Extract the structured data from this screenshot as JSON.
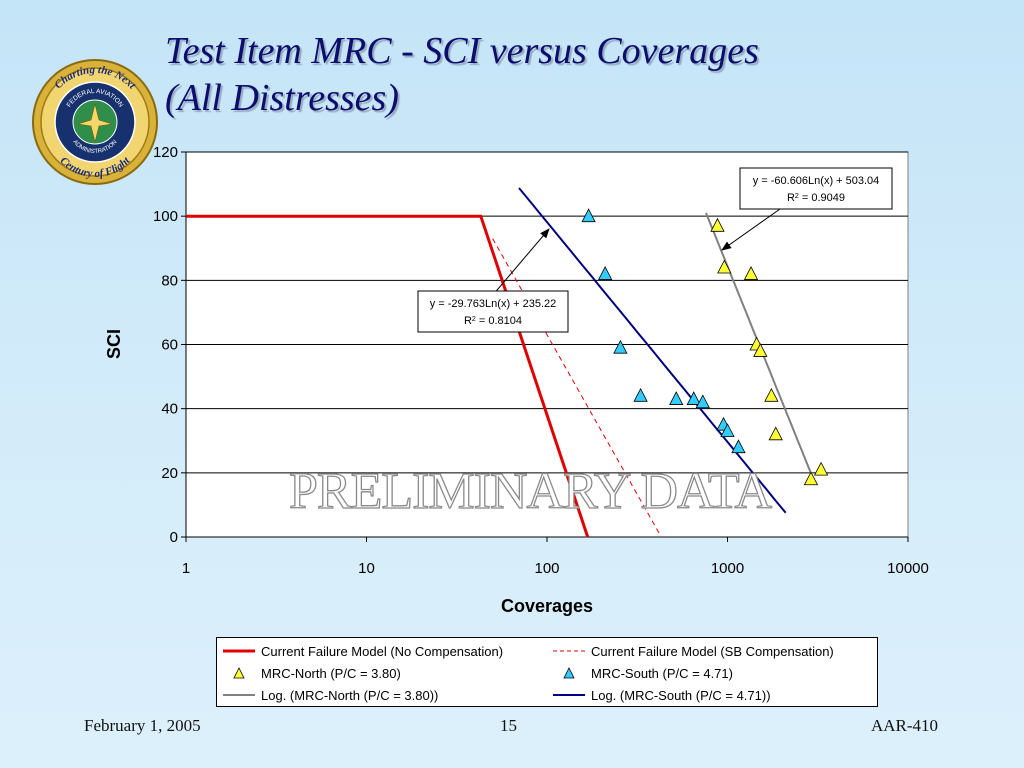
{
  "slide": {
    "title_line1": "Test Item MRC - SCI versus Coverages",
    "title_line2": "(All Distresses)",
    "logo": {
      "ring_text_top": "Charting the Next",
      "ring_text_bottom": "Century of Flight",
      "inner_text_top": "FEDERAL AVIATION",
      "inner_text_bottom": "ADMINISTRATION"
    },
    "footer_left": "February 1, 2005",
    "footer_center": "15",
    "footer_right": "AAR-410",
    "watermark": "PRELIMINARY DATA"
  },
  "colors": {
    "title": "#0d0d6e",
    "current_model": "#e00000",
    "sb_model": "#e00000",
    "north_fill": "#ffff33",
    "south_fill": "#33ccff",
    "north_fit": "#808080",
    "south_fit": "#00007f"
  },
  "chart_data": {
    "type": "scatter",
    "xlabel": "Coverages",
    "ylabel": "SCI",
    "xscale": "log",
    "xlim": [
      1,
      10000
    ],
    "ylim": [
      0,
      120
    ],
    "x_ticks": [
      "1",
      "10",
      "100",
      "1000",
      "10000"
    ],
    "y_ticks": [
      "0",
      "20",
      "40",
      "60",
      "80",
      "100",
      "120"
    ],
    "grid": "horizontal",
    "legend_position": "bottom",
    "series": [
      {
        "name": "Current Failure Model (No Compensation)",
        "kind": "line",
        "style": "solid",
        "color": "#e00000",
        "points": [
          [
            1,
            100
          ],
          [
            43,
            100
          ],
          [
            168,
            0
          ]
        ]
      },
      {
        "name": "Current Failure Model (SB Compensation)",
        "kind": "line",
        "style": "dashed",
        "color": "#e00000",
        "points": [
          [
            50,
            93
          ],
          [
            430,
            0
          ]
        ]
      },
      {
        "name": "MRC-North (P/C = 3.80)",
        "kind": "scatter",
        "marker": "triangle",
        "color": "#ffff33",
        "points": [
          [
            880,
            97
          ],
          [
            960,
            84
          ],
          [
            1350,
            82
          ],
          [
            1450,
            60
          ],
          [
            1520,
            58
          ],
          [
            1750,
            44
          ],
          [
            1850,
            32
          ],
          [
            2900,
            18
          ],
          [
            3300,
            21
          ]
        ]
      },
      {
        "name": "MRC-South (P/C = 4.71)",
        "kind": "scatter",
        "marker": "triangle",
        "color": "#33ccff",
        "points": [
          [
            170,
            100
          ],
          [
            210,
            82
          ],
          [
            255,
            59
          ],
          [
            330,
            44
          ],
          [
            520,
            43
          ],
          [
            650,
            43
          ],
          [
            730,
            42
          ],
          [
            950,
            35
          ],
          [
            1000,
            33
          ],
          [
            1150,
            28
          ]
        ]
      },
      {
        "name": "Log. (MRC-North (P/C = 3.80))",
        "kind": "fit",
        "color": "#808080",
        "equation": "y = -60.606Ln(x) + 503.04",
        "r2": "0.9049",
        "x_range": [
          760,
          2900
        ]
      },
      {
        "name": "Log. (MRC-South (P/C = 4.71))",
        "kind": "fit",
        "color": "#00007f",
        "equation": "y = -29.763Ln(x) + 235.22",
        "r2": "0.8104",
        "x_range": [
          70,
          2100
        ]
      }
    ],
    "annotations": [
      {
        "line1": "y = -29.763Ln(x) + 235.22",
        "r2_prefix": "R",
        "r2_sup": "2",
        "r2_value": " = 0.8104"
      },
      {
        "line1": "y = -60.606Ln(x) + 503.04",
        "r2_prefix": "R",
        "r2_sup": "2",
        "r2_value": " = 0.9049"
      }
    ]
  }
}
